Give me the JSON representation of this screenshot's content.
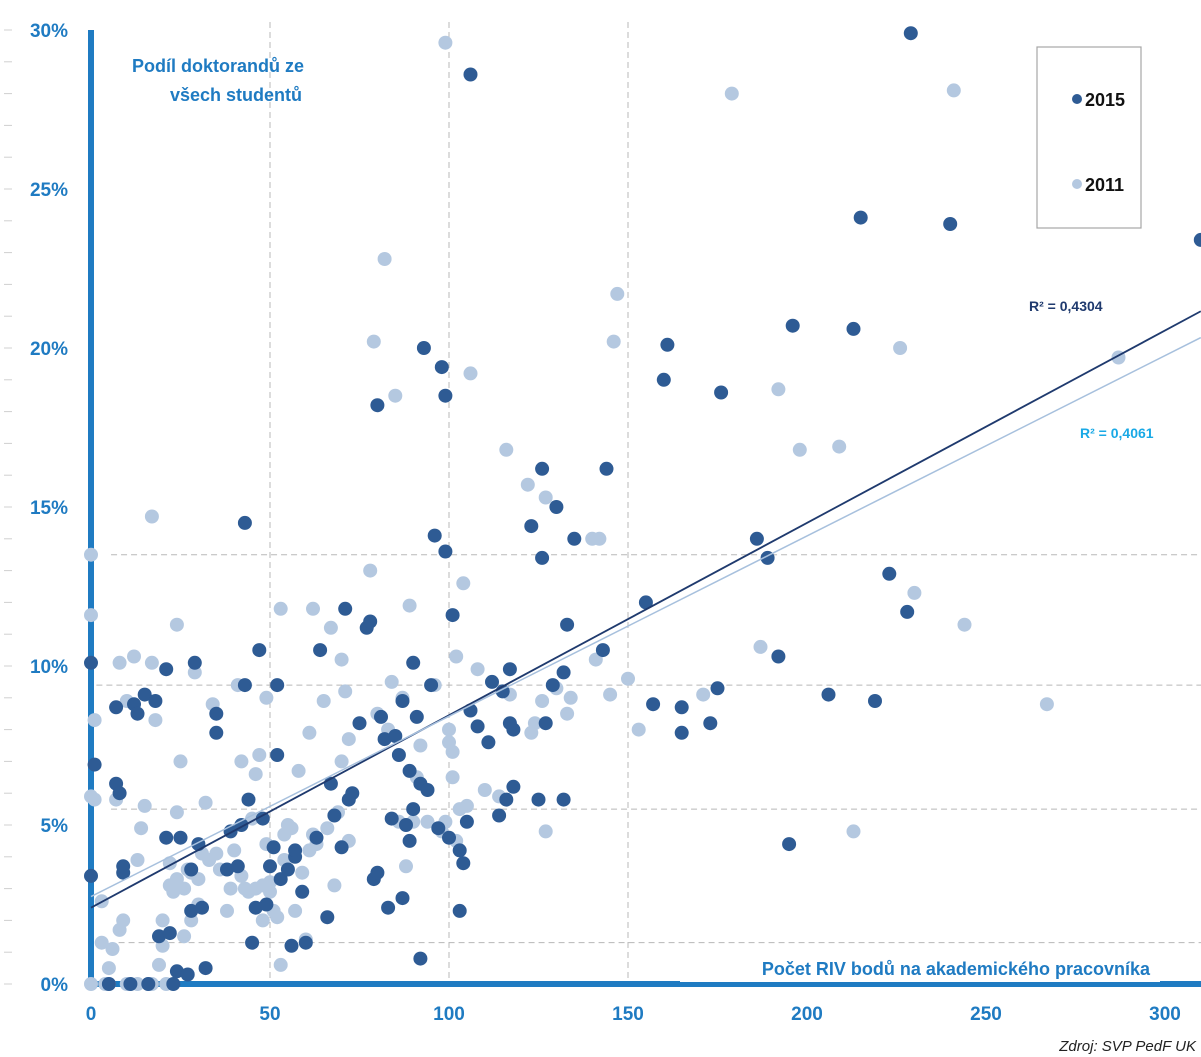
{
  "chart_data": {
    "type": "scatter",
    "y_label_lines": [
      "Podíl doktorandů ze",
      "všech studentů"
    ],
    "xlabel": "Počet RIV bodů na akademického pracovníka",
    "source": "Zdroj: SVP PedF UK",
    "xlim": [
      0,
      310
    ],
    "ylim": [
      0,
      30
    ],
    "x_ticks": [
      0,
      50,
      100,
      150,
      200,
      250,
      300
    ],
    "y_ticks": [
      0,
      5,
      10,
      15,
      20,
      25,
      30
    ],
    "y_tick_labels": [
      "0%",
      "5%",
      "10%",
      "15%",
      "20%",
      "25%",
      "30%"
    ],
    "legend_position": "top-right",
    "series": [
      {
        "name": "2015",
        "color": "#2e5b94",
        "trendline": {
          "intercept": 2.4,
          "slope": 0.0605,
          "r2_label": "R² = 0,4304",
          "color": "#1f3a6e"
        },
        "points": [
          [
            0,
            10.1
          ],
          [
            0,
            3.4
          ],
          [
            1,
            6.9
          ],
          [
            5,
            0
          ],
          [
            7,
            8.7
          ],
          [
            7,
            6.3
          ],
          [
            8,
            6.0
          ],
          [
            9,
            3.5
          ],
          [
            9,
            3.7
          ],
          [
            11,
            0
          ],
          [
            12,
            8.8
          ],
          [
            13,
            8.5
          ],
          [
            15,
            9.1
          ],
          [
            16,
            0
          ],
          [
            18,
            8.9
          ],
          [
            19,
            1.5
          ],
          [
            21,
            4.6
          ],
          [
            21,
            9.9
          ],
          [
            22,
            1.6
          ],
          [
            23,
            0
          ],
          [
            24,
            0.4
          ],
          [
            25,
            4.6
          ],
          [
            27,
            0.3
          ],
          [
            28,
            2.3
          ],
          [
            28,
            3.6
          ],
          [
            29,
            10.1
          ],
          [
            30,
            4.4
          ],
          [
            31,
            2.4
          ],
          [
            32,
            0.5
          ],
          [
            35,
            8.5
          ],
          [
            35,
            7.9
          ],
          [
            38,
            3.6
          ],
          [
            39,
            4.8
          ],
          [
            41,
            3.7
          ],
          [
            42,
            5.0
          ],
          [
            43,
            9.4
          ],
          [
            43,
            14.5
          ],
          [
            44,
            5.8
          ],
          [
            45,
            1.3
          ],
          [
            46,
            2.4
          ],
          [
            47,
            10.5
          ],
          [
            48,
            5.2
          ],
          [
            49,
            2.5
          ],
          [
            50,
            3.7
          ],
          [
            51,
            4.3
          ],
          [
            52,
            9.4
          ],
          [
            52,
            7.2
          ],
          [
            53,
            3.3
          ],
          [
            55,
            3.6
          ],
          [
            56,
            1.2
          ],
          [
            57,
            4.0
          ],
          [
            57,
            4.2
          ],
          [
            59,
            2.9
          ],
          [
            60,
            1.3
          ],
          [
            63,
            4.6
          ],
          [
            64,
            10.5
          ],
          [
            66,
            2.1
          ],
          [
            67,
            6.3
          ],
          [
            68,
            5.3
          ],
          [
            70,
            4.3
          ],
          [
            71,
            11.8
          ],
          [
            72,
            5.8
          ],
          [
            73,
            6.0
          ],
          [
            75,
            8.2
          ],
          [
            77,
            11.2
          ],
          [
            78,
            11.4
          ],
          [
            79,
            3.3
          ],
          [
            80,
            18.2
          ],
          [
            80,
            3.5
          ],
          [
            81,
            8.4
          ],
          [
            82,
            7.7
          ],
          [
            83,
            2.4
          ],
          [
            84,
            5.2
          ],
          [
            85,
            7.8
          ],
          [
            86,
            7.2
          ],
          [
            87,
            2.7
          ],
          [
            87,
            8.9
          ],
          [
            88,
            5.0
          ],
          [
            89,
            6.7
          ],
          [
            89,
            4.5
          ],
          [
            90,
            5.5
          ],
          [
            90,
            10.1
          ],
          [
            91,
            8.4
          ],
          [
            92,
            6.3
          ],
          [
            92,
            0.8
          ],
          [
            93,
            20.0
          ],
          [
            94,
            6.1
          ],
          [
            95,
            9.4
          ],
          [
            96,
            14.1
          ],
          [
            97,
            4.9
          ],
          [
            98,
            19.4
          ],
          [
            99,
            13.6
          ],
          [
            99,
            18.5
          ],
          [
            100,
            4.6
          ],
          [
            101,
            11.6
          ],
          [
            103,
            4.2
          ],
          [
            103,
            2.3
          ],
          [
            104,
            3.8
          ],
          [
            105,
            5.1
          ],
          [
            106,
            28.6
          ],
          [
            106,
            8.6
          ],
          [
            108,
            8.1
          ],
          [
            111,
            7.6
          ],
          [
            112,
            9.5
          ],
          [
            114,
            5.3
          ],
          [
            115,
            9.2
          ],
          [
            116,
            5.8
          ],
          [
            117,
            8.2
          ],
          [
            118,
            6.2
          ],
          [
            117,
            9.9
          ],
          [
            118,
            8.0
          ],
          [
            123,
            14.4
          ],
          [
            125,
            5.8
          ],
          [
            126,
            13.4
          ],
          [
            126,
            16.2
          ],
          [
            127,
            8.2
          ],
          [
            129,
            9.4
          ],
          [
            130,
            15.0
          ],
          [
            132,
            9.8
          ],
          [
            132,
            5.8
          ],
          [
            133,
            11.3
          ],
          [
            135,
            14.0
          ],
          [
            143,
            10.5
          ],
          [
            144,
            16.2
          ],
          [
            155,
            12.0
          ],
          [
            157,
            8.8
          ],
          [
            160,
            19.0
          ],
          [
            161,
            20.1
          ],
          [
            165,
            8.7
          ],
          [
            165,
            7.9
          ],
          [
            173,
            8.2
          ],
          [
            176,
            18.6
          ],
          [
            175,
            9.3
          ],
          [
            186,
            14.0
          ],
          [
            189,
            13.4
          ],
          [
            192,
            10.3
          ],
          [
            196,
            20.7
          ],
          [
            195,
            4.4
          ],
          [
            206,
            9.1
          ],
          [
            213,
            20.6
          ],
          [
            215,
            24.1
          ],
          [
            219,
            8.9
          ],
          [
            223,
            12.9
          ],
          [
            228,
            11.7
          ],
          [
            229,
            29.9
          ],
          [
            240,
            23.9
          ],
          [
            310,
            23.4
          ]
        ]
      },
      {
        "name": "2011",
        "color": "#b4c8e0",
        "trendline": {
          "intercept": 2.75,
          "slope": 0.0567,
          "r2_label": "R² = 0,4061",
          "color": "#a7c0dd"
        },
        "points": [
          [
            0,
            13.5
          ],
          [
            0,
            11.6
          ],
          [
            0,
            5.9
          ],
          [
            0,
            0
          ],
          [
            1,
            8.3
          ],
          [
            1,
            5.8
          ],
          [
            3,
            2.6
          ],
          [
            3,
            1.3
          ],
          [
            4,
            0
          ],
          [
            5,
            0
          ],
          [
            5,
            0.5
          ],
          [
            6,
            1.1
          ],
          [
            7,
            5.8
          ],
          [
            8,
            10.1
          ],
          [
            8,
            1.7
          ],
          [
            9,
            2.0
          ],
          [
            10,
            8.9
          ],
          [
            10,
            0
          ],
          [
            11,
            0
          ],
          [
            12,
            10.3
          ],
          [
            13,
            3.9
          ],
          [
            13,
            0
          ],
          [
            14,
            4.9
          ],
          [
            15,
            5.6
          ],
          [
            16,
            0
          ],
          [
            17,
            0
          ],
          [
            17,
            14.7
          ],
          [
            17,
            10.1
          ],
          [
            18,
            8.3
          ],
          [
            19,
            0.6
          ],
          [
            20,
            2.0
          ],
          [
            20,
            1.2
          ],
          [
            21,
            0
          ],
          [
            22,
            3.8
          ],
          [
            22,
            3.1
          ],
          [
            23,
            2.9
          ],
          [
            24,
            3.3
          ],
          [
            24,
            5.4
          ],
          [
            24,
            11.3
          ],
          [
            25,
            7.0
          ],
          [
            26,
            3.0
          ],
          [
            26,
            1.5
          ],
          [
            27,
            3.6
          ],
          [
            28,
            3.5
          ],
          [
            28,
            2.0
          ],
          [
            29,
            9.8
          ],
          [
            30,
            3.3
          ],
          [
            30,
            2.5
          ],
          [
            31,
            4.1
          ],
          [
            32,
            5.7
          ],
          [
            33,
            3.9
          ],
          [
            34,
            8.8
          ],
          [
            35,
            4.1
          ],
          [
            36,
            3.6
          ],
          [
            38,
            2.3
          ],
          [
            39,
            3.0
          ],
          [
            40,
            4.2
          ],
          [
            41,
            9.4
          ],
          [
            42,
            3.4
          ],
          [
            42,
            7.0
          ],
          [
            43,
            3.0
          ],
          [
            44,
            2.9
          ],
          [
            45,
            5.2
          ],
          [
            46,
            6.6
          ],
          [
            46,
            3.0
          ],
          [
            47,
            7.2
          ],
          [
            48,
            2.0
          ],
          [
            48,
            3.1
          ],
          [
            49,
            9.0
          ],
          [
            49,
            4.4
          ],
          [
            50,
            2.9
          ],
          [
            50,
            3.2
          ],
          [
            51,
            2.3
          ],
          [
            52,
            2.1
          ],
          [
            53,
            11.8
          ],
          [
            53,
            0.6
          ],
          [
            54,
            4.7
          ],
          [
            54,
            3.9
          ],
          [
            55,
            5.0
          ],
          [
            56,
            4.9
          ],
          [
            57,
            2.3
          ],
          [
            58,
            6.7
          ],
          [
            59,
            3.5
          ],
          [
            60,
            1.4
          ],
          [
            61,
            4.2
          ],
          [
            61,
            7.9
          ],
          [
            62,
            4.7
          ],
          [
            62,
            11.8
          ],
          [
            63,
            4.4
          ],
          [
            65,
            8.9
          ],
          [
            66,
            4.9
          ],
          [
            67,
            11.2
          ],
          [
            68,
            3.1
          ],
          [
            69,
            5.4
          ],
          [
            70,
            7.0
          ],
          [
            70,
            10.2
          ],
          [
            71,
            9.2
          ],
          [
            72,
            7.7
          ],
          [
            72,
            4.5
          ],
          [
            78,
            13.0
          ],
          [
            79,
            20.2
          ],
          [
            80,
            8.5
          ],
          [
            82,
            22.8
          ],
          [
            83,
            8.0
          ],
          [
            84,
            9.5
          ],
          [
            85,
            18.5
          ],
          [
            86,
            5.1
          ],
          [
            87,
            9.0
          ],
          [
            88,
            3.7
          ],
          [
            89,
            11.9
          ],
          [
            90,
            5.1
          ],
          [
            91,
            6.5
          ],
          [
            92,
            7.5
          ],
          [
            94,
            5.1
          ],
          [
            96,
            9.4
          ],
          [
            98,
            4.8
          ],
          [
            99,
            29.6
          ],
          [
            99,
            5.1
          ],
          [
            100,
            8.0
          ],
          [
            100,
            7.6
          ],
          [
            101,
            6.5
          ],
          [
            101,
            7.3
          ],
          [
            102,
            4.5
          ],
          [
            102,
            10.3
          ],
          [
            103,
            5.5
          ],
          [
            104,
            12.6
          ],
          [
            105,
            5.6
          ],
          [
            106,
            19.2
          ],
          [
            108,
            9.9
          ],
          [
            110,
            6.1
          ],
          [
            114,
            5.9
          ],
          [
            116,
            16.8
          ],
          [
            117,
            9.1
          ],
          [
            122,
            15.7
          ],
          [
            123,
            7.9
          ],
          [
            124,
            8.2
          ],
          [
            126,
            8.9
          ],
          [
            127,
            4.8
          ],
          [
            127,
            15.3
          ],
          [
            130,
            9.3
          ],
          [
            133,
            8.5
          ],
          [
            134,
            9.0
          ],
          [
            140,
            14.0
          ],
          [
            141,
            10.2
          ],
          [
            142,
            14.0
          ],
          [
            145,
            9.1
          ],
          [
            146,
            20.2
          ],
          [
            147,
            21.7
          ],
          [
            150,
            9.6
          ],
          [
            153,
            8.0
          ],
          [
            171,
            9.1
          ],
          [
            179,
            28.0
          ],
          [
            187,
            10.6
          ],
          [
            192,
            18.7
          ],
          [
            198,
            16.8
          ],
          [
            209,
            16.9
          ],
          [
            213,
            4.8
          ],
          [
            226,
            20.0
          ],
          [
            230,
            12.3
          ],
          [
            241,
            28.1
          ],
          [
            244,
            11.3
          ],
          [
            267,
            8.8
          ],
          [
            287,
            19.7
          ]
        ]
      }
    ]
  }
}
